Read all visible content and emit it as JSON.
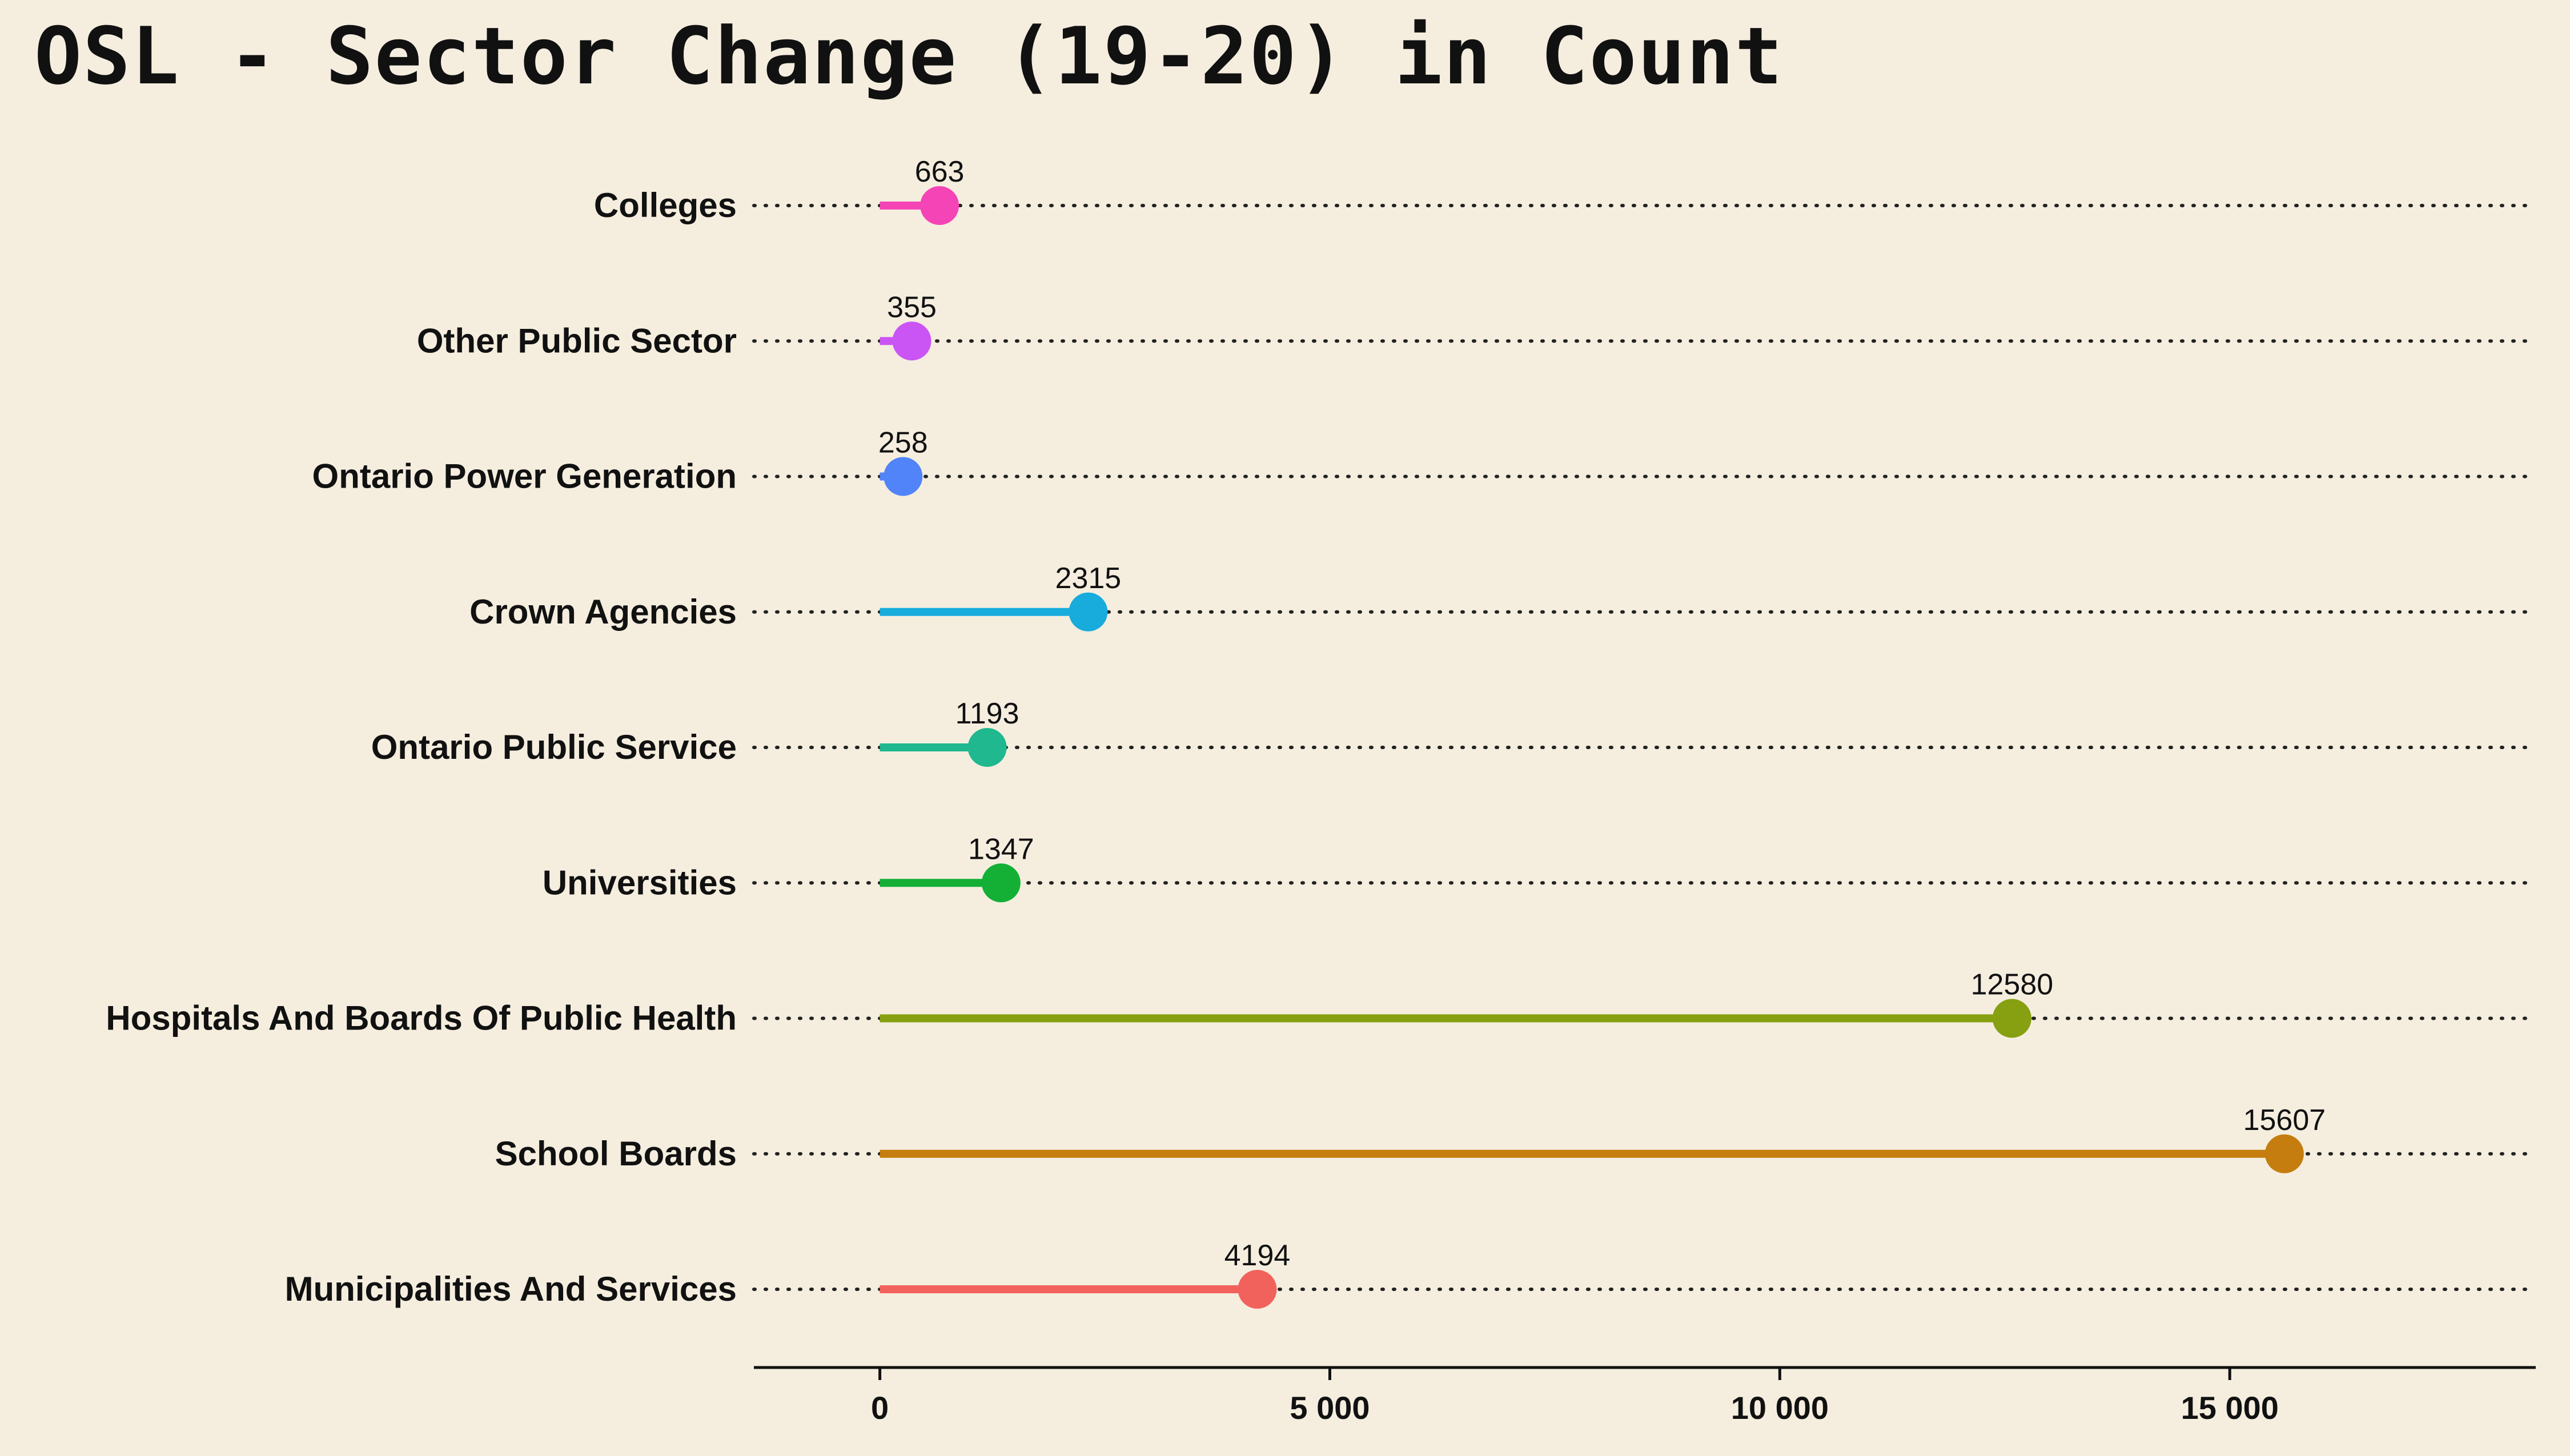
{
  "chart_data": {
    "type": "lollipop",
    "title": "OSL - Sector Change (19-20) in Count",
    "xlabel": "",
    "ylabel": "",
    "xlim": [
      -1400,
      18400
    ],
    "xticks": [
      0,
      5000,
      10000,
      15000
    ],
    "xtick_labels": [
      "0",
      "5 000",
      "10 000",
      "15 000"
    ],
    "categories": [
      "Municipalities And Services",
      "School Boards",
      "Hospitals And Boards Of Public Health",
      "Universities",
      "Ontario Public Service",
      "Crown Agencies",
      "Ontario Power Generation",
      "Other Public Sector",
      "Colleges"
    ],
    "values": [
      4194,
      15607,
      12580,
      1347,
      1193,
      2315,
      258,
      355,
      663
    ],
    "colors": [
      "#f2625c",
      "#c47d0e",
      "#86a011",
      "#14b036",
      "#1fb88f",
      "#18acdc",
      "#5184f8",
      "#cb55f4",
      "#f544b6"
    ],
    "grid": "dotted horizontal per category",
    "legend": "none"
  }
}
